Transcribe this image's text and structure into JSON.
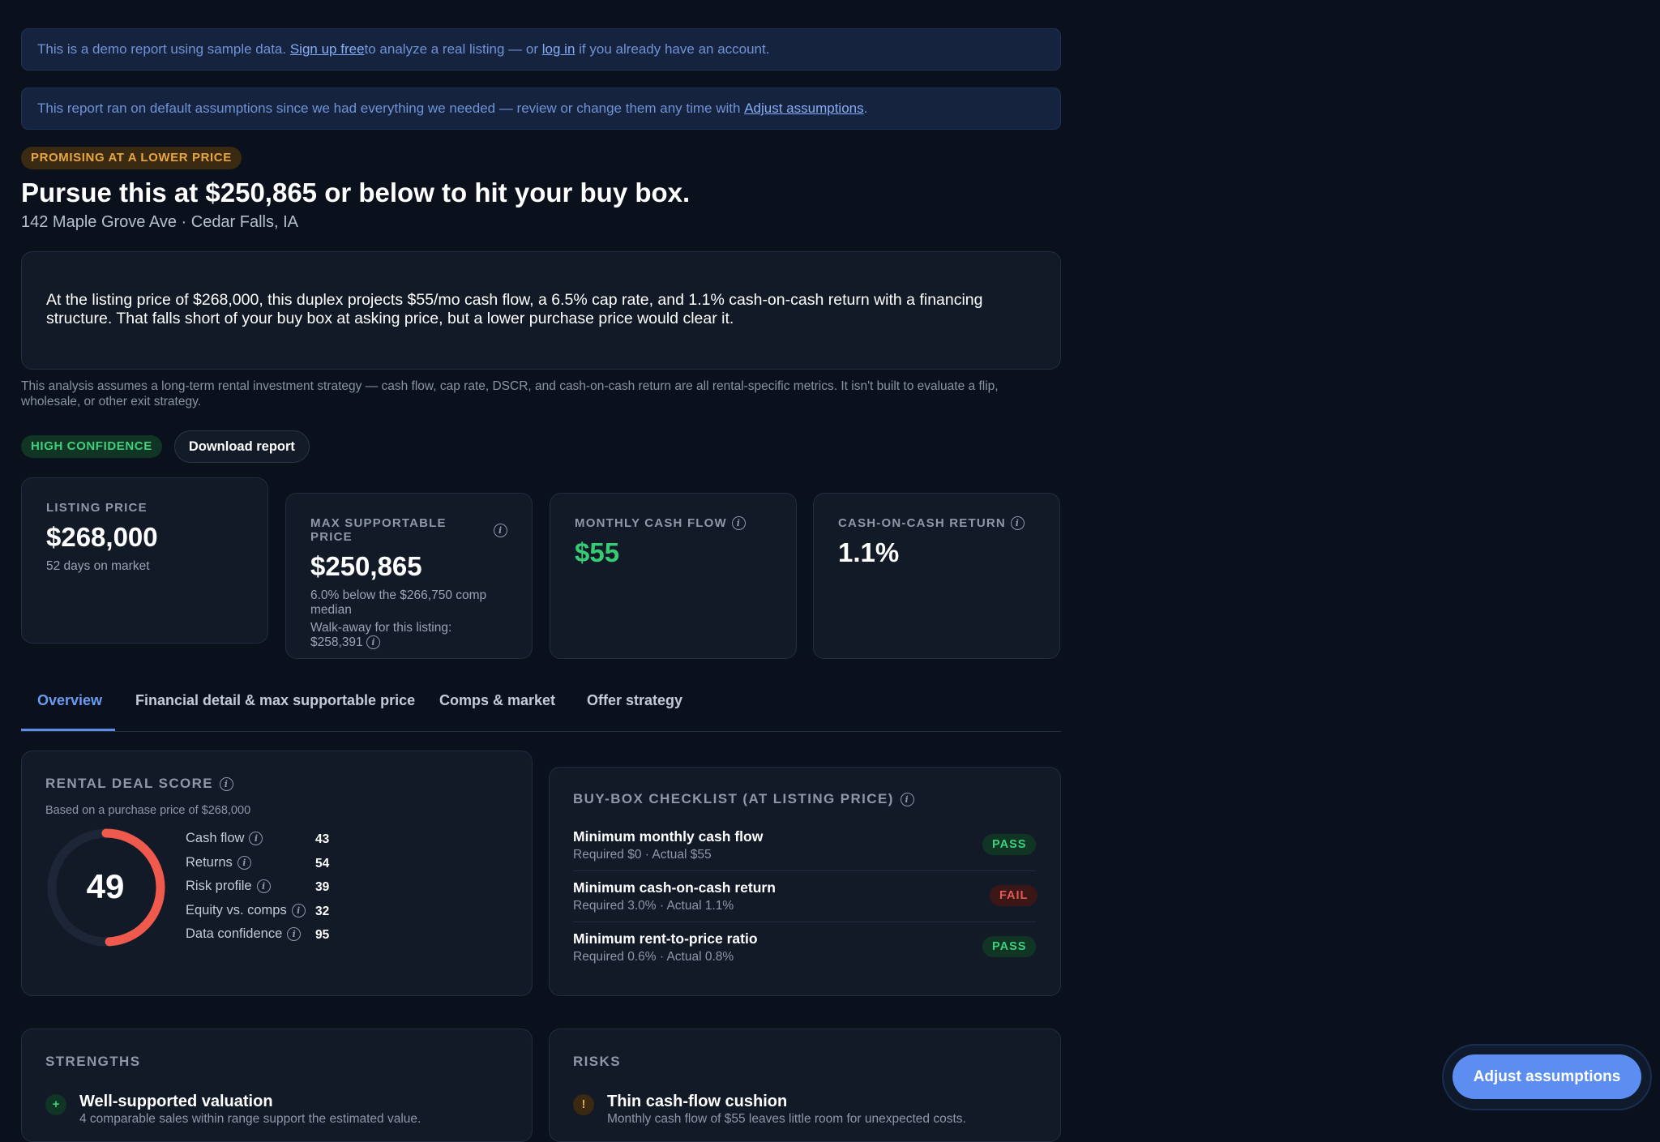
{
  "banners": {
    "demo": {
      "prefix": "This is a demo report using sample data. ",
      "signup_link": "Sign up free",
      "middle": " to analyze a real listing — or ",
      "login_link": "log in",
      "suffix": " if you already have an account."
    },
    "defaults": {
      "prefix": "This report ran on default assumptions since we had everything we needed — review or change them any time with ",
      "link": "Adjust assumptions",
      "suffix": "."
    }
  },
  "verdict_badge": "PROMISING AT A LOWER PRICE",
  "headline": "Pursue this at $250,865 or below to hit your buy box.",
  "address": "142 Maple Grove Ave · Cedar Falls, IA",
  "summary": "At the listing price of $268,000, this duplex projects $55/mo cash flow, a 6.5% cap rate, and 1.1% cash-on-cash return with a financing structure. That falls short of your buy box at asking price, but a lower purchase price would clear it.",
  "strategy_note": "This analysis assumes a long-term rental investment strategy — cash flow, cap rate, DSCR, and cash-on-cash return are all rental-specific metrics. It isn't built to evaluate a flip, wholesale, or other exit strategy.",
  "confidence_badge": "HIGH CONFIDENCE",
  "download_button": "Download report",
  "metric_cards": {
    "listing": {
      "label": "LISTING PRICE",
      "value": "$268,000",
      "sub": "52 days on market"
    },
    "max_price": {
      "label": "MAX SUPPORTABLE PRICE",
      "value": "$250,865",
      "sub1": "6.0% below the $266,750 comp median",
      "sub2": "Walk-away for this listing: $258,391"
    },
    "cash_flow": {
      "label": "MONTHLY CASH FLOW",
      "value": "$55"
    },
    "coc": {
      "label": "CASH-ON-CASH RETURN",
      "value": "1.1%"
    }
  },
  "tabs": [
    {
      "label": "Overview",
      "active": true
    },
    {
      "label": "Financial detail & max supportable price",
      "active": false
    },
    {
      "label": "Comps & market",
      "active": false
    },
    {
      "label": "Offer strategy",
      "active": false
    }
  ],
  "deal_score": {
    "title": "RENTAL DEAL SCORE",
    "subtitle": "Based on a purchase price of $268,000",
    "score": "49",
    "score_fraction": 0.49,
    "gauge_color": "#ef5a4d",
    "rows": [
      {
        "label": "Cash flow",
        "value": "43"
      },
      {
        "label": "Returns",
        "value": "54"
      },
      {
        "label": "Risk profile",
        "value": "39"
      },
      {
        "label": "Equity vs. comps",
        "value": "32"
      },
      {
        "label": "Data confidence",
        "value": "95"
      }
    ]
  },
  "checklist": {
    "title": "BUY-BOX CHECKLIST (AT LISTING PRICE)",
    "items": [
      {
        "title": "Minimum monthly cash flow",
        "detail": "Required $0 · Actual $55",
        "status": "PASS"
      },
      {
        "title": "Minimum cash-on-cash return",
        "detail": "Required 3.0% · Actual 1.1%",
        "status": "FAIL"
      },
      {
        "title": "Minimum rent-to-price ratio",
        "detail": "Required 0.6% · Actual 0.8%",
        "status": "PASS"
      }
    ]
  },
  "strengths": {
    "title": "STRENGTHS",
    "item_title": "Well-supported valuation",
    "item_detail": "4 comparable sales within range support the estimated value."
  },
  "risks": {
    "title": "RISKS",
    "item_title": "Thin cash-flow cushion",
    "item_detail": "Monthly cash flow of $55 leaves little room for unexpected costs."
  },
  "fab_button": "Adjust assumptions",
  "colors": {
    "accent": "#5b8ef0",
    "pass": "#3ed07c",
    "fail": "#e45a52",
    "amber": "#e8a640"
  }
}
